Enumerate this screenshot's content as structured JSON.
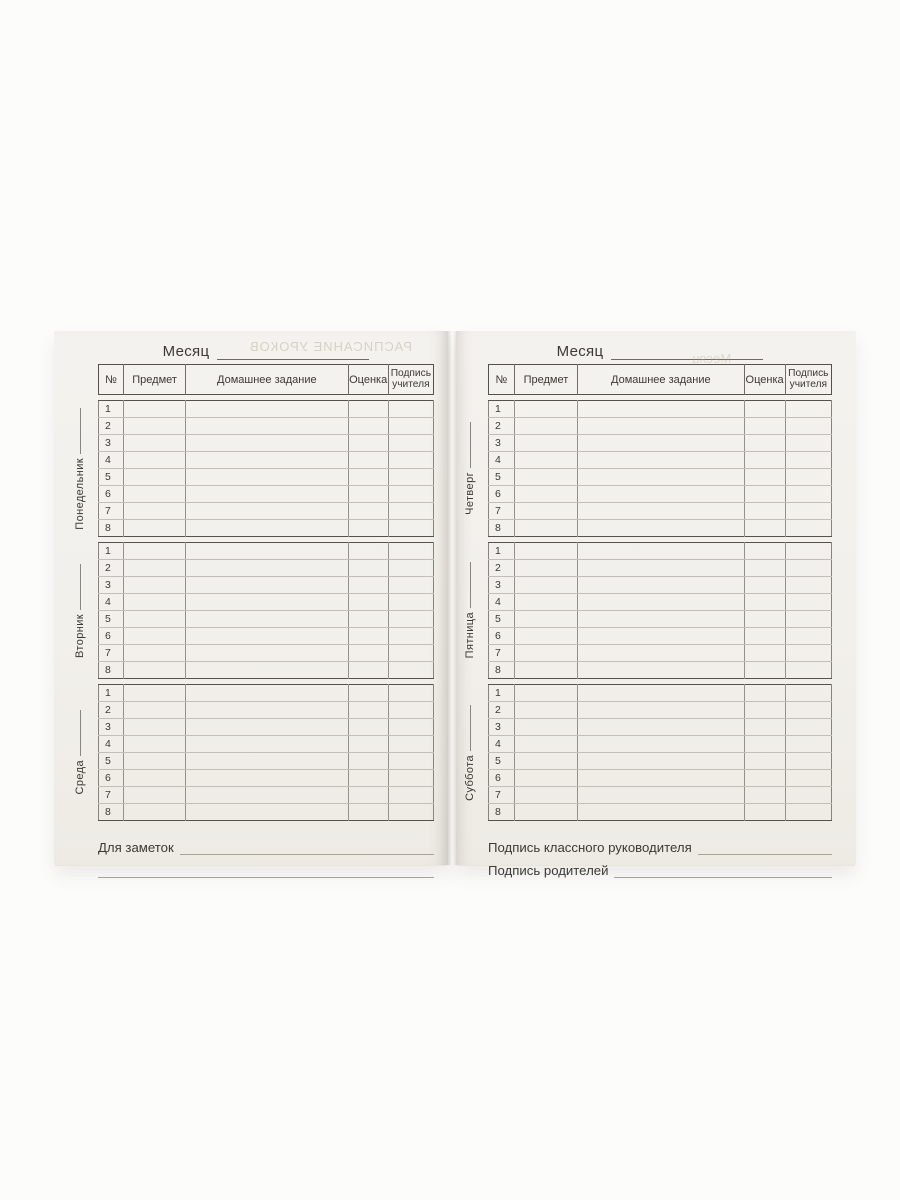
{
  "colors": {
    "photo_background": "#fcfcfb",
    "page_paper": "#f2f0eb",
    "ink": "#3c3934",
    "dark_rule": "#55524c",
    "light_rule": "#c3bfb6",
    "ghost_ink": "#b6ab94"
  },
  "row_numbers": [
    "1",
    "2",
    "3",
    "4",
    "5",
    "6",
    "7",
    "8"
  ],
  "table_headers": {
    "num": "№",
    "subject": "Предмет",
    "homework": "Домашнее задание",
    "grade": "Оценка",
    "signature_line1": "Подпись",
    "signature_line2": "учителя"
  },
  "left_page": {
    "month_label": "Месяц",
    "ghost_title": "РАСПИСАНИЕ УРОКОВ",
    "days": [
      "Понедельник",
      "Вторник",
      "Среда"
    ],
    "notes_label": "Для заметок"
  },
  "right_page": {
    "month_label": "Месяц",
    "ghost_title": "Месяц",
    "days": [
      "Четверг",
      "Пятница",
      "Суббота"
    ],
    "class_teacher_label": "Подпись классного руководителя",
    "parents_label": "Подпись родителей"
  }
}
